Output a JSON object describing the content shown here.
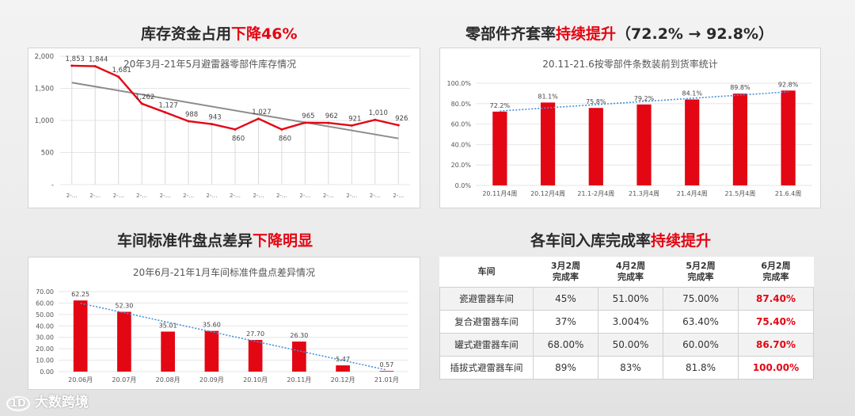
{
  "headings": {
    "h1": {
      "pre": "库存资金占用",
      "hl": "下降46%"
    },
    "h2": {
      "pre": "零部件齐套率",
      "hl": "持续提升",
      "post": "（72.2%  →  92.8%）"
    },
    "h3": {
      "pre": "车间标准件盘点差异",
      "hl": "下降明显"
    },
    "h4": {
      "pre": "各车间入库完成率",
      "hl": "持续提升"
    }
  },
  "brand": {
    "text": "大数跨境",
    "accent": "#e30613"
  },
  "chart_data": [
    {
      "id": "inventory",
      "type": "line",
      "title": "20年3月-21年5月避雷器零部件库存情况",
      "ylim": [
        0,
        2000
      ],
      "yticks": [
        "2,000",
        "1,500",
        "1,000",
        "500",
        "-"
      ],
      "ytick_values": [
        2000,
        1500,
        1000,
        500,
        0
      ],
      "xtick_label": "2-…",
      "values": [
        1853,
        1844,
        1681,
        1262,
        1127,
        988,
        943,
        860,
        1027,
        860,
        965,
        962,
        921,
        1010,
        926
      ],
      "labels": [
        "1,853",
        "1,844",
        "1,681",
        "1,262",
        "1,127",
        "988",
        "943",
        "860",
        "1,027",
        "860",
        "965",
        "962",
        "921",
        "1,010",
        "926"
      ],
      "trend": [
        1590,
        720
      ],
      "colors": {
        "line": "#e30613",
        "trend": "#8c8c8c"
      }
    },
    {
      "id": "kitting",
      "type": "bar",
      "title": "20.11-21.6按零部件条数装前到货率统计",
      "categories": [
        "20.11月4周",
        "20.12月4周",
        "21.1-2月4周",
        "21.3月4周",
        "21.4月4周",
        "21.5月4周",
        "21.6.4周"
      ],
      "values": [
        72.2,
        81.1,
        75.8,
        79.2,
        84.1,
        89.8,
        92.8
      ],
      "labels": [
        "72.2%",
        "81.1%",
        "75.8%",
        "79.2%",
        "84.1%",
        "89.8%",
        "92.8%"
      ],
      "ylim": [
        0,
        100
      ],
      "yticks": [
        "100.0%",
        "80.0%",
        "60.0%",
        "40.0%",
        "20.0%",
        "0.0%"
      ],
      "ytick_values": [
        100,
        80,
        60,
        40,
        20,
        0
      ],
      "colors": {
        "bar": "#e30613",
        "trend": "#4a90d9"
      }
    },
    {
      "id": "variance",
      "type": "bar",
      "title": "20年6月-21年1月车间标准件盘点差异情况",
      "categories": [
        "20.06月",
        "20.07月",
        "20.08月",
        "20.09月",
        "20.10月",
        "20.11月",
        "20.12月",
        "21.01月"
      ],
      "values": [
        62.25,
        52.3,
        35.01,
        35.6,
        27.7,
        26.3,
        5.47,
        0.57
      ],
      "labels": [
        "62.25",
        "52.30",
        "35.01",
        "35.60",
        "27.70",
        "26.30",
        "5.47",
        "0.57"
      ],
      "ylim": [
        0,
        70
      ],
      "yticks": [
        "70.00",
        "60.00",
        "50.00",
        "40.00",
        "30.00",
        "20.00",
        "10.00",
        "0.00"
      ],
      "ytick_values": [
        70,
        60,
        50,
        40,
        30,
        20,
        10,
        0
      ],
      "colors": {
        "bar": "#e30613",
        "trend": "#4a90d9"
      }
    }
  ],
  "table": {
    "headers": [
      {
        "l1": "车间",
        "l2": ""
      },
      {
        "l1": "3月2周",
        "l2": "完成率"
      },
      {
        "l1": "4月2周",
        "l2": "完成率"
      },
      {
        "l1": "5月2周",
        "l2": "完成率"
      },
      {
        "l1": "6月2周",
        "l2": "完成率"
      }
    ],
    "rows": [
      {
        "name": "瓷避雷器车间",
        "c1": "45%",
        "c2": "51.00%",
        "c3": "75.00%",
        "c4": "87.40%"
      },
      {
        "name": "复合避雷器车间",
        "c1": "37%",
        "c2": "3.004%",
        "c3": "63.40%",
        "c4": "75.40%"
      },
      {
        "name": "罐式避雷器车间",
        "c1": "68.00%",
        "c2": "50.00%",
        "c3": "60.00%",
        "c4": "86.70%"
      },
      {
        "name": "插拔式避雷器车间",
        "c1": "89%",
        "c2": "83%",
        "c3": "81.8%",
        "c4": "100.00%"
      }
    ]
  }
}
